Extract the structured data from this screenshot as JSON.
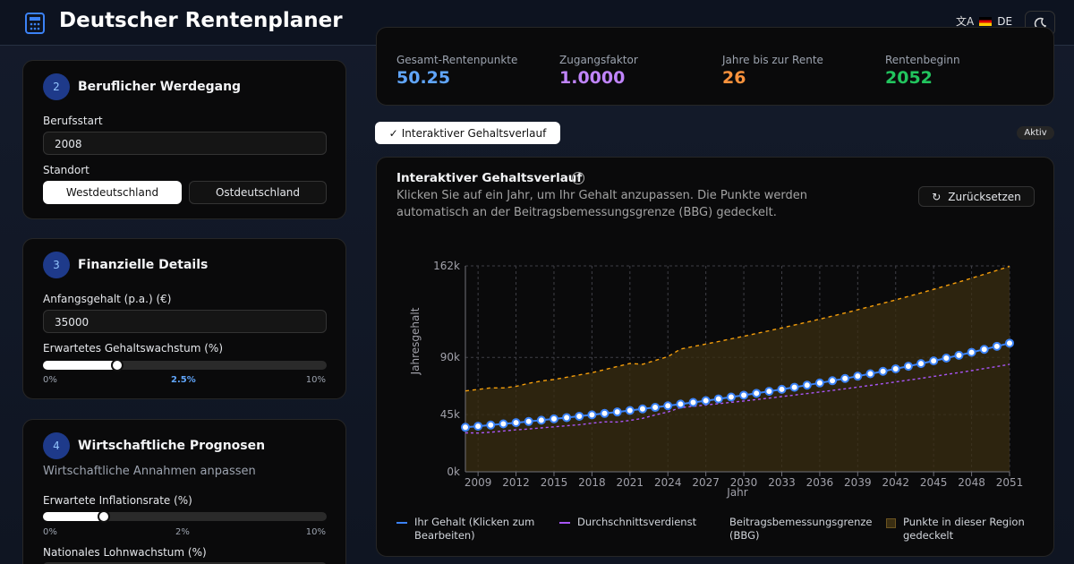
{
  "header": {
    "title": "Deutscher Rentenplaner",
    "language": "DE"
  },
  "career": {
    "step": "2",
    "title": "Beruflicher Werdegang",
    "start_label": "Berufsstart",
    "start_value": "2008",
    "location_label": "Standort",
    "locations": [
      "Westdeutschland",
      "Ostdeutschland"
    ]
  },
  "finance": {
    "step": "3",
    "title": "Finanzielle Details",
    "salary_label": "Anfangsgehalt (p.a.) (€)",
    "salary_value": "35000",
    "growth_label": "Erwartetes Gehaltswachstum (%)",
    "growth_min": "0%",
    "growth_current": "2.5%",
    "growth_max": "10%"
  },
  "forecast": {
    "step": "4",
    "title": "Wirtschaftliche Prognosen",
    "subtitle": "Wirtschaftliche Annahmen anpassen",
    "inflation_label": "Erwartete Inflationsrate (%)",
    "inflation_min": "0%",
    "inflation_current": "2%",
    "inflation_max": "10%",
    "wage_label": "Nationales Lohnwachstum (%)"
  },
  "stats": [
    {
      "label": "Gesamt-Rentenpunkte",
      "value": "50.25"
    },
    {
      "label": "Zugangsfaktor",
      "value": "1.0000"
    },
    {
      "label": "Jahre bis zur Rente",
      "value": "26"
    },
    {
      "label": "Rentenbeginn",
      "value": "2052"
    }
  ],
  "toggle": {
    "label": "Interaktiver Gehaltsverlauf",
    "status": "Aktiv"
  },
  "chart_card": {
    "title": "Interaktiver Gehaltsverlauf",
    "description": "Klicken Sie auf ein Jahr, um Ihr Gehalt anzupassen. Die Punkte werden automatisch an der Beitragsbemessungsgrenze (BBG) gedeckelt.",
    "reset": "Zurücksetzen"
  },
  "chart_data": {
    "type": "line",
    "xlabel": "Jahr",
    "ylabel": "Jahresgehalt",
    "x": [
      2008,
      2009,
      2010,
      2011,
      2012,
      2013,
      2014,
      2015,
      2016,
      2017,
      2018,
      2019,
      2020,
      2021,
      2022,
      2023,
      2024,
      2025,
      2026,
      2027,
      2028,
      2029,
      2030,
      2031,
      2032,
      2033,
      2034,
      2035,
      2036,
      2037,
      2038,
      2039,
      2040,
      2041,
      2042,
      2043,
      2044,
      2045,
      2046,
      2047,
      2048,
      2049,
      2050,
      2051
    ],
    "series": [
      {
        "name": "Ihr Gehalt (Klicken zum Bearbeiten)",
        "color": "#3b82f6",
        "values": [
          35000,
          35875,
          36772,
          37691,
          38633,
          39599,
          40589,
          41604,
          42644,
          43710,
          44803,
          45923,
          47071,
          48248,
          49454,
          50690,
          51958,
          53256,
          54588,
          55953,
          57351,
          58785,
          60255,
          61761,
          63305,
          64888,
          66510,
          68173,
          69877,
          71624,
          73415,
          75250,
          77131,
          79060,
          81036,
          83062,
          85139,
          87267,
          89449,
          91685,
          93977,
          96327,
          98735,
          101203
        ]
      },
      {
        "name": "Durchschnittsverdienst",
        "color": "#a855f7",
        "values": [
          30625,
          30506,
          31144,
          32100,
          33002,
          33659,
          34514,
          35363,
          36187,
          37077,
          38212,
          39301,
          39167,
          40463,
          42053,
          44732,
          47085,
          50493,
          51503,
          52533,
          53584,
          54655,
          55748,
          56863,
          58000,
          59160,
          60343,
          61550,
          62781,
          64037,
          65318,
          66624,
          67957,
          69316,
          70702,
          72116,
          73558,
          75029,
          76530,
          78061,
          79622,
          81214,
          82838,
          84495
        ]
      },
      {
        "name": "Beitragsbemessungsgrenze (BBG)",
        "color": "#f59e0b",
        "values": [
          63600,
          64800,
          66000,
          66000,
          67200,
          69600,
          71400,
          72600,
          74400,
          76200,
          78000,
          80400,
          82800,
          85200,
          84600,
          87600,
          90600,
          96600,
          98532,
          100503,
          102513,
          104563,
          106654,
          108787,
          110963,
          113182,
          115446,
          117755,
          120110,
          122512,
          124962,
          127461,
          130010,
          132610,
          135262,
          137967,
          140726,
          143541,
          146412,
          149340,
          152327,
          155374,
          158481,
          161651
        ]
      }
    ],
    "area_label": "Punkte in dieser Region gedeckelt",
    "area_color": "#3a2e12",
    "xlim": [
      2008,
      2051
    ],
    "xticks": [
      2009,
      2012,
      2015,
      2018,
      2021,
      2024,
      2027,
      2030,
      2033,
      2036,
      2039,
      2042,
      2045,
      2048,
      2051
    ],
    "ylim": [
      0,
      162000
    ],
    "yticks": [
      {
        "value": 0,
        "label": "0k"
      },
      {
        "value": 45000,
        "label": "45k"
      },
      {
        "value": 90000,
        "label": "90k"
      },
      {
        "value": 162000,
        "label": "162k"
      }
    ],
    "grid": true
  }
}
